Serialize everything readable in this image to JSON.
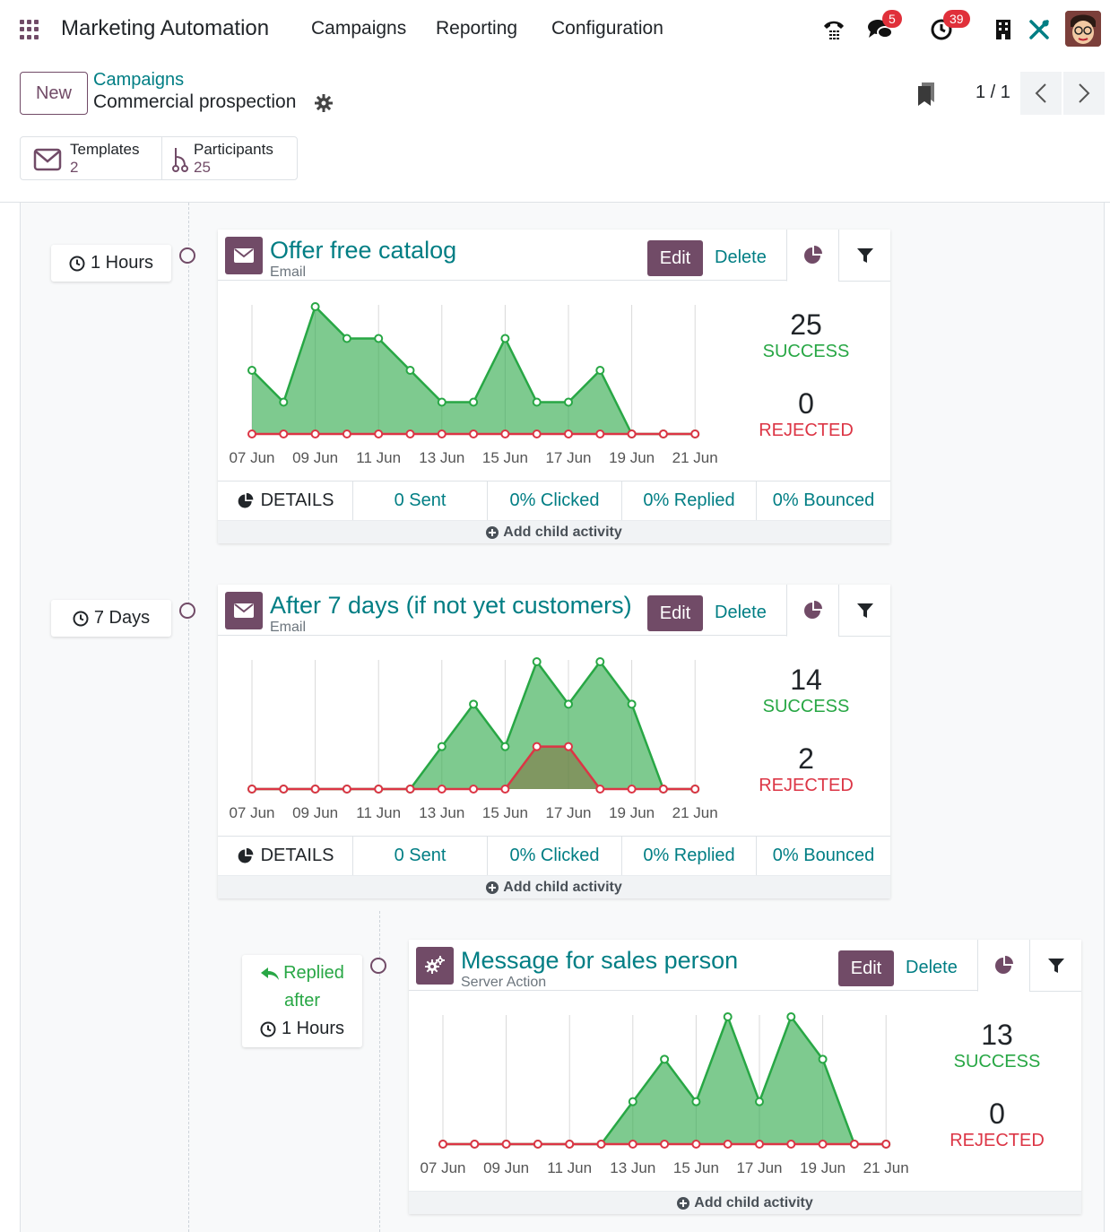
{
  "navbar": {
    "brand": "Marketing Automation",
    "menu": [
      "Campaigns",
      "Reporting",
      "Configuration"
    ],
    "messages_count": "5",
    "activities_count": "39"
  },
  "control": {
    "new_label": "New",
    "breadcrumb_parent": "Campaigns",
    "breadcrumb_current": "Commercial prospection",
    "pager": "1 / 1",
    "templates_label": "Templates",
    "templates_count": "2",
    "participants_label": "Participants",
    "participants_count": "25"
  },
  "labels": {
    "edit": "Edit",
    "delete": "Delete",
    "success": "SUCCESS",
    "rejected": "REJECTED",
    "details": "DETAILS",
    "add_child": "Add child activity"
  },
  "activities": [
    {
      "trigger": "1 Hours",
      "title": "Offer free catalog",
      "type": "Email",
      "success": "25",
      "rejected": "0",
      "sent": "0 Sent",
      "clicked": "0% Clicked",
      "replied": "0% Replied",
      "bounced": "0% Bounced"
    },
    {
      "trigger": "7 Days",
      "title": "After 7 days (if not yet customers)",
      "type": "Email",
      "success": "14",
      "rejected": "2",
      "sent": "0 Sent",
      "clicked": "0% Clicked",
      "replied": "0% Replied",
      "bounced": "0% Bounced"
    },
    {
      "trigger_line1": "Replied",
      "trigger_line2": "after",
      "trigger": "1 Hours",
      "title": "Message for sales person",
      "type": "Server Action",
      "success": "13",
      "rejected": "0"
    }
  ],
  "chart_data": [
    {
      "type": "area",
      "x": [
        "07 Jun",
        "08 Jun",
        "09 Jun",
        "10 Jun",
        "11 Jun",
        "12 Jun",
        "13 Jun",
        "14 Jun",
        "15 Jun",
        "16 Jun",
        "17 Jun",
        "18 Jun",
        "19 Jun",
        "20 Jun",
        "21 Jun"
      ],
      "tick_labels": [
        "07 Jun",
        "09 Jun",
        "11 Jun",
        "13 Jun",
        "15 Jun",
        "17 Jun",
        "19 Jun",
        "21 Jun"
      ],
      "series": [
        {
          "color": "#28a745",
          "values": [
            2,
            1,
            4,
            3,
            3,
            2,
            1,
            1,
            3,
            1,
            1,
            2,
            0,
            0,
            0
          ]
        },
        {
          "color": "#dc3545",
          "values": [
            0,
            0,
            0,
            0,
            0,
            0,
            0,
            0,
            0,
            0,
            0,
            0,
            0,
            0,
            0
          ]
        }
      ],
      "ylim": [
        0,
        4
      ]
    },
    {
      "type": "area",
      "x": [
        "07 Jun",
        "08 Jun",
        "09 Jun",
        "10 Jun",
        "11 Jun",
        "12 Jun",
        "13 Jun",
        "14 Jun",
        "15 Jun",
        "16 Jun",
        "17 Jun",
        "18 Jun",
        "19 Jun",
        "20 Jun",
        "21 Jun"
      ],
      "tick_labels": [
        "07 Jun",
        "09 Jun",
        "11 Jun",
        "13 Jun",
        "15 Jun",
        "17 Jun",
        "19 Jun",
        "21 Jun"
      ],
      "series": [
        {
          "color": "#28a745",
          "values": [
            0,
            0,
            0,
            0,
            0,
            0,
            1,
            2,
            1,
            3,
            2,
            3,
            2,
            0,
            0
          ]
        },
        {
          "color": "#dc3545",
          "values": [
            0,
            0,
            0,
            0,
            0,
            0,
            0,
            0,
            0,
            1,
            1,
            0,
            0,
            0,
            0
          ]
        }
      ],
      "ylim": [
        0,
        3
      ]
    },
    {
      "type": "area",
      "x": [
        "07 Jun",
        "08 Jun",
        "09 Jun",
        "10 Jun",
        "11 Jun",
        "12 Jun",
        "13 Jun",
        "14 Jun",
        "15 Jun",
        "16 Jun",
        "17 Jun",
        "18 Jun",
        "19 Jun",
        "20 Jun",
        "21 Jun"
      ],
      "tick_labels": [
        "07 Jun",
        "09 Jun",
        "11 Jun",
        "13 Jun",
        "15 Jun",
        "17 Jun",
        "19 Jun",
        "21 Jun"
      ],
      "series": [
        {
          "color": "#28a745",
          "values": [
            0,
            0,
            0,
            0,
            0,
            0,
            1,
            2,
            1,
            3,
            1,
            3,
            2,
            0,
            0
          ]
        },
        {
          "color": "#dc3545",
          "values": [
            0,
            0,
            0,
            0,
            0,
            0,
            0,
            0,
            0,
            0,
            0,
            0,
            0,
            0,
            0
          ]
        }
      ],
      "ylim": [
        0,
        3
      ]
    }
  ]
}
